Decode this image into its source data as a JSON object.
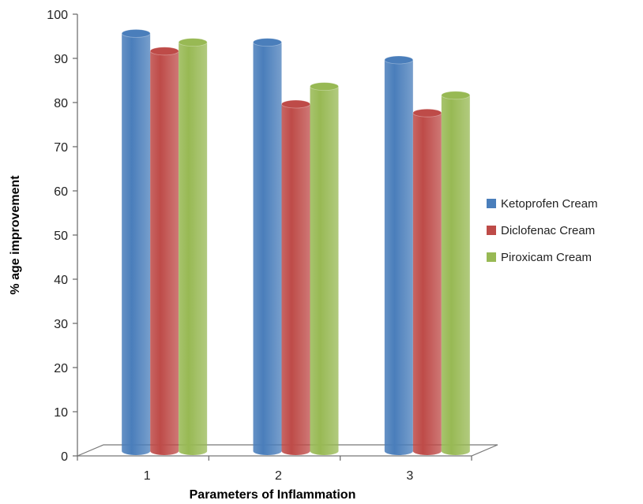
{
  "chart_data": {
    "type": "bar",
    "categories": [
      "1",
      "2",
      "3"
    ],
    "series": [
      {
        "name": "Ketoprofen Cream",
        "values": [
          96,
          94,
          90
        ],
        "color": "#4A7EBB"
      },
      {
        "name": "Diclofenac Cream",
        "values": [
          92,
          80,
          78
        ],
        "color": "#BE4B48"
      },
      {
        "name": "Piroxicam Cream",
        "values": [
          94,
          84,
          82
        ],
        "color": "#98B954"
      }
    ],
    "xlabel": "Parameters of Inflammation",
    "ylabel": "% age improvement",
    "ylim": [
      0,
      100
    ],
    "yticks": [
      "0",
      "10",
      "20",
      "30",
      "40",
      "50",
      "60",
      "70",
      "80",
      "90",
      "100"
    ],
    "legend_position": "right",
    "style": "3d-cylinder"
  }
}
